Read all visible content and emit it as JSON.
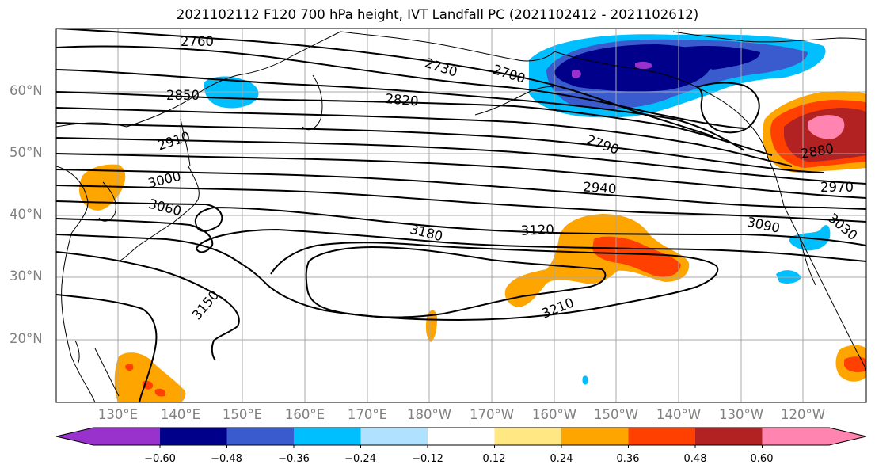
{
  "title": "2021102112 F120 700 hPa height, IVT Landfall PC (2021102412 - 2021102612)",
  "latitude_labels": [
    "60°N",
    "50°N",
    "40°N",
    "30°N",
    "20°N"
  ],
  "longitude_labels": [
    "130°E",
    "140°E",
    "150°E",
    "160°E",
    "170°E",
    "180°W",
    "170°W",
    "160°W",
    "150°W",
    "140°W",
    "130°W",
    "120°W"
  ],
  "contour_labels": [
    "2760",
    "2730",
    "2700",
    "2850",
    "2820",
    "2910",
    "2790",
    "2880",
    "3000",
    "2940",
    "2970",
    "3060",
    "3120",
    "3090",
    "3030",
    "3180",
    "3150",
    "3210"
  ],
  "colorbar": {
    "tick_labels": [
      "−0.60",
      "−0.48",
      "−0.36",
      "−0.24",
      "−0.12",
      "0.12",
      "0.24",
      "0.36",
      "0.48",
      "0.60"
    ],
    "colors": [
      "#9932CC",
      "#00008B",
      "#3A5BCD",
      "#00BFFF",
      "#B0E2FF",
      "#FFFFFF",
      "#FFE884",
      "#FFA500",
      "#FF4000",
      "#B22222",
      "#FF85B0"
    ]
  },
  "fill_colors": {
    "neg_light": "#00BFFF",
    "neg_mid": "#3A5BCD",
    "neg_dark": "#00008B",
    "neg_min": "#9932CC",
    "pos_light": "#FFE884",
    "pos_mid": "#FFA500",
    "pos_high": "#FF4000",
    "pos_higher": "#B22222",
    "pos_max": "#FF85B0"
  }
}
